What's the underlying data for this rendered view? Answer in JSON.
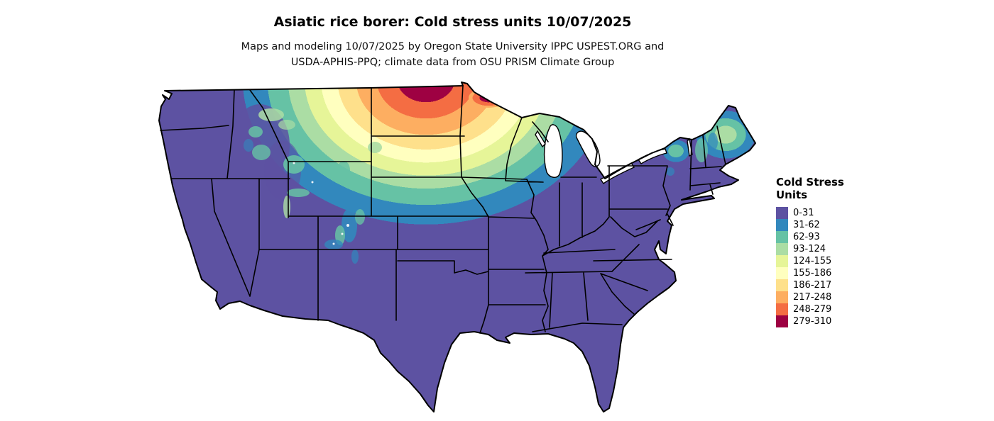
{
  "title": "Asiatic rice borer: Cold stress units 10/07/2025",
  "subtitle_line1": "Maps and modeling 10/07/2025 by Oregon State University IPPC USPEST.ORG and",
  "subtitle_line2": "USDA-APHIS-PPQ; climate data from OSU PRISM Climate Group",
  "legend": {
    "title_line1": "Cold Stress",
    "title_line2": "Units",
    "items": [
      {
        "label": "0-31",
        "color": "#5d52a2"
      },
      {
        "label": "31-62",
        "color": "#3288bd"
      },
      {
        "label": "62-93",
        "color": "#66c2a5"
      },
      {
        "label": "93-124",
        "color": "#abdda4"
      },
      {
        "label": "124-155",
        "color": "#e6f598"
      },
      {
        "label": "155-186",
        "color": "#ffffbf"
      },
      {
        "label": "186-217",
        "color": "#fee08b"
      },
      {
        "label": "217-248",
        "color": "#fdae61"
      },
      {
        "label": "248-279",
        "color": "#f46d43"
      },
      {
        "label": "279-310",
        "color": "#9e0142"
      }
    ]
  },
  "map": {
    "land_base_color": "#5d52a2",
    "border_color": "#000000",
    "water_color": "#ffffff",
    "background_color": "#ffffff"
  }
}
